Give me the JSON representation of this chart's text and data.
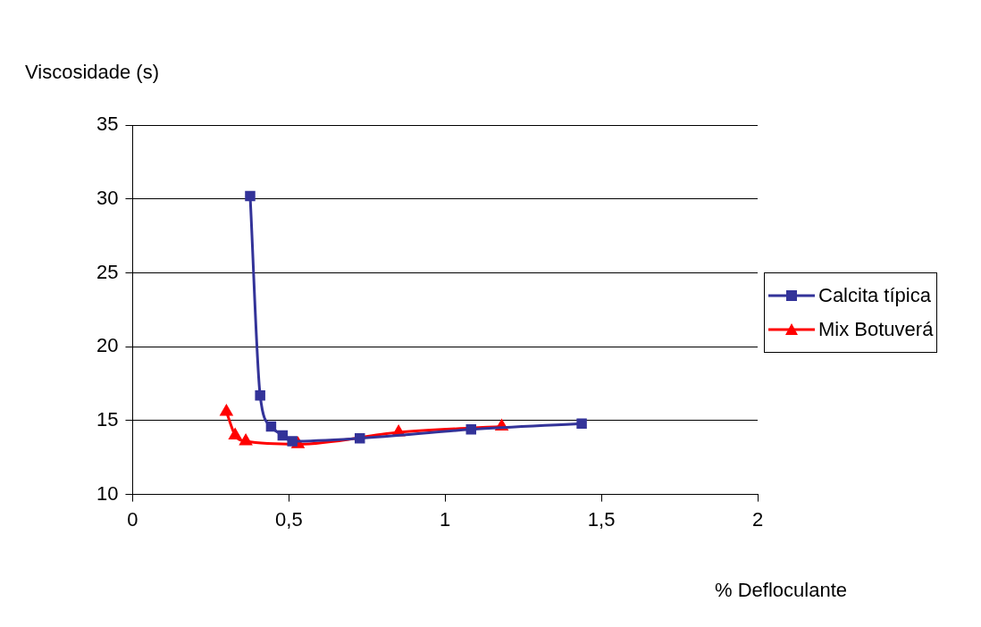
{
  "chart_data": {
    "type": "line",
    "xlabel": "% Defloculante",
    "ylabel": "Viscosidade (s)",
    "xlim": [
      0,
      2
    ],
    "xticks": [
      0,
      {
        "value": 0.5,
        "label": "0,5"
      },
      1,
      {
        "value": 1.5,
        "label": "1,5"
      },
      2
    ],
    "ylim": [
      10,
      35
    ],
    "yticks": [
      10,
      15,
      20,
      25,
      30,
      35
    ],
    "grid": "y",
    "legend": "right",
    "series": [
      {
        "name": "Calcita típica",
        "color": "#333399",
        "marker": "square",
        "x": [
          0.376,
          0.408,
          0.443,
          0.48,
          0.511,
          0.727,
          1.083,
          1.437
        ],
        "values": [
          30.2,
          16.7,
          14.6,
          14.0,
          13.6,
          13.8,
          14.4,
          14.8
        ]
      },
      {
        "name": "Mix Botuverá",
        "color": "#ff0000",
        "marker": "triangle",
        "x": [
          0.3,
          0.328,
          0.362,
          0.529,
          0.851,
          1.181
        ],
        "values": [
          15.6,
          14.0,
          13.6,
          13.4,
          14.2,
          14.6
        ]
      }
    ]
  }
}
